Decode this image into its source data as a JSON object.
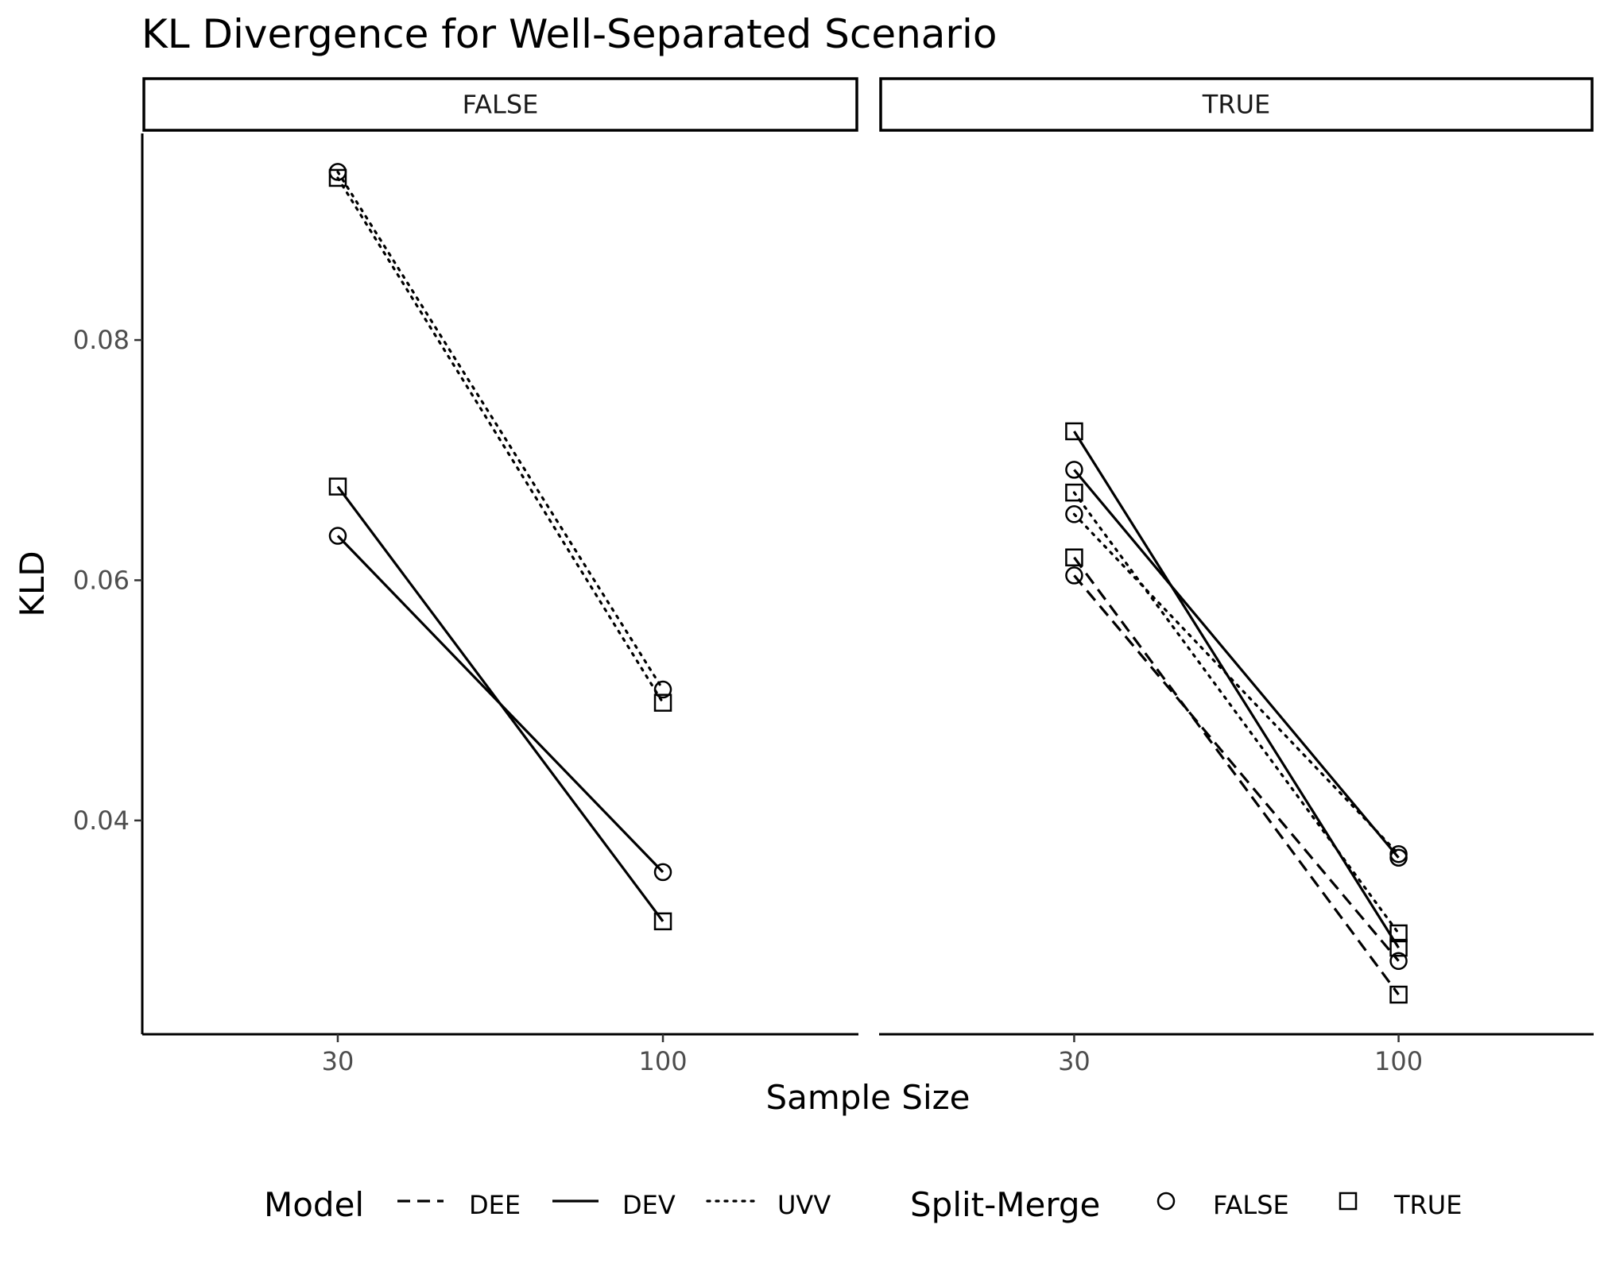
{
  "chart_data": {
    "type": "line",
    "title": "KL Divergence for Well-Separated Scenario",
    "xlabel": "Sample Size",
    "ylabel": "KLD",
    "x_categories": [
      "30",
      "100"
    ],
    "y_ticks": [
      "0.04",
      "0.06",
      "0.08"
    ],
    "ylim": [
      0.0222,
      0.0972
    ],
    "grid": false,
    "facet_variable_values": [
      "FALSE",
      "TRUE"
    ],
    "legend": {
      "position": "bottom",
      "model": {
        "title": "Model",
        "items": [
          {
            "label": "DEE",
            "linetype": "dashed"
          },
          {
            "label": "DEV",
            "linetype": "solid"
          },
          {
            "label": "UVV",
            "linetype": "dotted"
          }
        ]
      },
      "split_merge": {
        "title": "Split-Merge",
        "items": [
          {
            "label": "FALSE",
            "shape": "circle"
          },
          {
            "label": "TRUE",
            "shape": "square"
          }
        ]
      }
    },
    "panels": [
      {
        "label": "FALSE",
        "series": [
          {
            "model": "DEV",
            "split_merge": "FALSE",
            "values": [
              0.0637,
              0.0357
            ]
          },
          {
            "model": "DEV",
            "split_merge": "TRUE",
            "values": [
              0.0678,
              0.0316
            ]
          },
          {
            "model": "UVV",
            "split_merge": "FALSE",
            "values": [
              0.094,
              0.0509
            ]
          },
          {
            "model": "UVV",
            "split_merge": "TRUE",
            "values": [
              0.0935,
              0.0498
            ]
          }
        ]
      },
      {
        "label": "TRUE",
        "series": [
          {
            "model": "DEE",
            "split_merge": "FALSE",
            "values": [
              0.0604,
              0.0283
            ]
          },
          {
            "model": "DEE",
            "split_merge": "TRUE",
            "values": [
              0.0619,
              0.0255
            ]
          },
          {
            "model": "DEV",
            "split_merge": "FALSE",
            "values": [
              0.0692,
              0.0369
            ]
          },
          {
            "model": "DEV",
            "split_merge": "TRUE",
            "values": [
              0.0724,
              0.0294
            ]
          },
          {
            "model": "UVV",
            "split_merge": "FALSE",
            "values": [
              0.0655,
              0.0372
            ]
          },
          {
            "model": "UVV",
            "split_merge": "TRUE",
            "values": [
              0.0673,
              0.0306
            ]
          }
        ]
      }
    ]
  }
}
